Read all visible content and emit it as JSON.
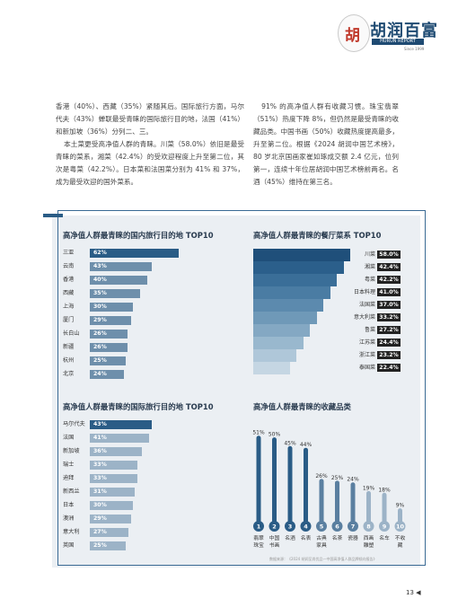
{
  "header": {
    "logo_glyph": "胡",
    "logo_cn": "胡润百富",
    "logo_en": "HURUN REPORT",
    "logo_since": "Since 1999"
  },
  "text": {
    "left_p1": "香港（40%）、西藏（35%）紧随其后。国际旅行方面，马尔代夫（43%）蝉联最受青睐的国际旅行目的地，法国（41%）和新加坡（36%）分列二、三。",
    "left_p2": "本土菜更受高净值人群的青睐。川菜（58.0%）依旧是最受青睐的菜系，湘菜（42.4%）的受欢迎程度上升至第二位，其次是粤菜（42.2%）。日本菜和法国菜分别为 41% 和 37%，成为最受欢迎的国外菜系。",
    "right_p1": "91% 的高净值人群有收藏习惯。珠宝翡翠（51%）热度下降 8%，但仍然是最受青睐的收藏品类。中国书画（50%）收藏热度提高最多，升至第二位。根据《2024 胡润中国艺术榜》，80 岁北京国画家崔如琢成交额 2.4 亿元，位列第一，连续十年位居胡润中国艺术榜前两名。名酒（45%）维持在第三名。"
  },
  "colors": {
    "dark": "#2a5c86",
    "mid": "#6e8fab",
    "light": "#9cb3c7",
    "teal": "#4c7d8f"
  },
  "chart_data": [
    {
      "type": "bar",
      "title": "高净值人群最青睐的国内旅行目的地 TOP10",
      "categories": [
        "三亚",
        "云南",
        "香港",
        "西藏",
        "上海",
        "厦门",
        "长白山",
        "新疆",
        "杭州",
        "北京"
      ],
      "values": [
        62,
        43,
        40,
        35,
        30,
        29,
        26,
        26,
        25,
        24
      ]
    },
    {
      "type": "bar",
      "title": "高净值人群最青睐的餐厅菜系 TOP10",
      "categories": [
        "川菜",
        "湘菜",
        "粤菜",
        "日本料理",
        "法国菜",
        "意大利菜",
        "鲁菜",
        "江苏菜",
        "浙江菜",
        "泰国菜"
      ],
      "values": [
        58.0,
        42.4,
        42.2,
        41.0,
        37.0,
        33.2,
        27.2,
        24.4,
        23.2,
        22.4
      ]
    },
    {
      "type": "bar",
      "title": "高净值人群最青睐的国际旅行目的地 TOP10",
      "categories": [
        "马尔代夫",
        "法国",
        "新加坡",
        "瑞士",
        "迪拜",
        "新西兰",
        "日本",
        "澳洲",
        "意大利",
        "英国"
      ],
      "values": [
        43,
        41,
        36,
        33,
        33,
        31,
        30,
        29,
        27,
        25
      ]
    },
    {
      "type": "bar",
      "title": "高净值人群最青睐的收藏品类",
      "categories": [
        "翡翠珠宝",
        "中国书画",
        "名酒",
        "名表",
        "古典家具",
        "名茶",
        "瓷器",
        "西画雕塑",
        "名车",
        "不收藏"
      ],
      "values": [
        51,
        50,
        45,
        44,
        26,
        25,
        24,
        19,
        18,
        9
      ],
      "numbers": [
        "1",
        "2",
        "3",
        "4",
        "5",
        "6",
        "7",
        "8",
        "9",
        "10"
      ]
    }
  ],
  "source": "数据来源：《2024 胡润至尚优品—中国高净值人群品牌倾向报告》",
  "page_number": "13"
}
